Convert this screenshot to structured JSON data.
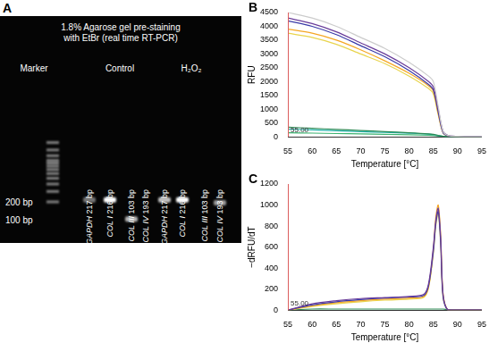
{
  "gel": {
    "panel": "A",
    "title_lines": [
      "1.8% Agarose gel pre-staining",
      "with EtBr (real time RT-PCR)"
    ],
    "size_markers": [
      {
        "label": "200 bp",
        "bp": 200
      },
      {
        "label": "100 bp",
        "bp": 100
      }
    ],
    "ladder_bp": [
      200,
      300,
      400,
      500,
      600,
      700,
      800,
      900,
      1000,
      1200,
      1500,
      2000
    ],
    "groups": [
      {
        "label": "Marker",
        "lanes": []
      },
      {
        "label": "Control",
        "lanes": [
          {
            "label": "GAPDH 217 bp",
            "band_bp": 217,
            "intensity": 0.45
          },
          {
            "label": "COL I 216 bp",
            "band_bp": 216,
            "intensity": 1.0
          },
          {
            "label": "COL III 103 bp",
            "band_bp": 103,
            "intensity": 0.7
          },
          {
            "label": "COL IV 193 bp",
            "band_bp": null,
            "intensity": 0
          }
        ]
      },
      {
        "label": "H₂O₂",
        "lanes": [
          {
            "label": "GAPDH 217 bp",
            "band_bp": 217,
            "intensity": 0.75
          },
          {
            "label": "COL I 216 bp",
            "band_bp": 216,
            "intensity": 1.0
          },
          {
            "label": "COL III 103 bp",
            "band_bp": null,
            "intensity": 0
          },
          {
            "label": "COL IV 193 bp",
            "band_bp": 193,
            "intensity": 0.6
          }
        ]
      }
    ]
  },
  "chart_data": [
    {
      "type": "line",
      "panel": "B",
      "x_label": "Temperature [°C]",
      "y_label": "RFU",
      "x": [
        55,
        60,
        65,
        70,
        75,
        80,
        84,
        85,
        86,
        87,
        88,
        90,
        95
      ],
      "xlim": [
        55,
        95
      ],
      "xticks": [
        55,
        60,
        65,
        70,
        75,
        80,
        85,
        90,
        95
      ],
      "ylim": [
        0,
        4500
      ],
      "yticks": [
        0,
        500,
        1000,
        1500,
        2000,
        2500,
        3000,
        3500,
        4000,
        4500
      ],
      "grid": false,
      "annotation": {
        "text": "55.00",
        "x": 55
      },
      "series": [
        {
          "color": "#cccccc",
          "values": [
            4500,
            4300,
            4000,
            3600,
            3200,
            2700,
            2200,
            2000,
            1100,
            200,
            50,
            20,
            10
          ]
        },
        {
          "color": "#6a3d9a",
          "values": [
            4300,
            4100,
            3800,
            3400,
            3000,
            2500,
            2000,
            1800,
            1000,
            200,
            50,
            20,
            10
          ]
        },
        {
          "color": "#3a3aa8",
          "values": [
            4200,
            4000,
            3700,
            3300,
            2900,
            2400,
            1900,
            1700,
            900,
            150,
            40,
            20,
            10
          ]
        },
        {
          "color": "#f5a623",
          "values": [
            3900,
            3750,
            3500,
            3150,
            2750,
            2300,
            1850,
            1650,
            850,
            150,
            40,
            20,
            10
          ]
        },
        {
          "color": "#e8d44d",
          "values": [
            3750,
            3600,
            3350,
            3000,
            2650,
            2200,
            1750,
            1550,
            800,
            150,
            40,
            20,
            10
          ]
        },
        {
          "color": "#2e8b57",
          "values": [
            350,
            310,
            270,
            230,
            190,
            150,
            110,
            90,
            50,
            20,
            10,
            5,
            5
          ]
        },
        {
          "color": "#20b2aa",
          "values": [
            280,
            250,
            220,
            190,
            160,
            130,
            100,
            80,
            45,
            20,
            10,
            5,
            5
          ]
        },
        {
          "color": "#3cb371",
          "values": [
            150,
            135,
            120,
            105,
            90,
            75,
            60,
            50,
            30,
            15,
            5,
            5,
            5
          ]
        }
      ]
    },
    {
      "type": "line",
      "panel": "C",
      "x_label": "Temperature [°C]",
      "y_label": "−dRFU/dT",
      "x": [
        55,
        60,
        65,
        70,
        75,
        80,
        83,
        84,
        85,
        85.5,
        86,
        86.5,
        87,
        88,
        90,
        95
      ],
      "xlim": [
        55,
        95
      ],
      "xticks": [
        55,
        60,
        65,
        70,
        75,
        80,
        85,
        90,
        95
      ],
      "ylim": [
        0,
        1200
      ],
      "yticks": [
        0,
        200,
        400,
        600,
        800,
        1000,
        1200
      ],
      "grid": false,
      "annotation": {
        "text": "55.00",
        "x": 55
      },
      "series": [
        {
          "color": "#6a3d9a",
          "values": [
            0,
            60,
            90,
            110,
            120,
            130,
            150,
            250,
            600,
            850,
            970,
            700,
            150,
            0,
            0,
            0
          ]
        },
        {
          "color": "#3a3aa8",
          "values": [
            0,
            50,
            80,
            100,
            115,
            125,
            140,
            230,
            560,
            820,
            940,
            650,
            130,
            0,
            0,
            0
          ]
        },
        {
          "color": "#f5a623",
          "values": [
            0,
            40,
            70,
            90,
            105,
            115,
            130,
            220,
            580,
            880,
            1000,
            720,
            160,
            0,
            0,
            0
          ]
        },
        {
          "color": "#e8d44d",
          "values": [
            0,
            35,
            60,
            80,
            95,
            105,
            120,
            210,
            540,
            800,
            920,
            630,
            120,
            0,
            0,
            0
          ]
        },
        {
          "color": "#2e8b57",
          "values": [
            0,
            10,
            10,
            10,
            10,
            10,
            10,
            10,
            10,
            10,
            10,
            10,
            10,
            5,
            0,
            0
          ]
        }
      ]
    }
  ]
}
